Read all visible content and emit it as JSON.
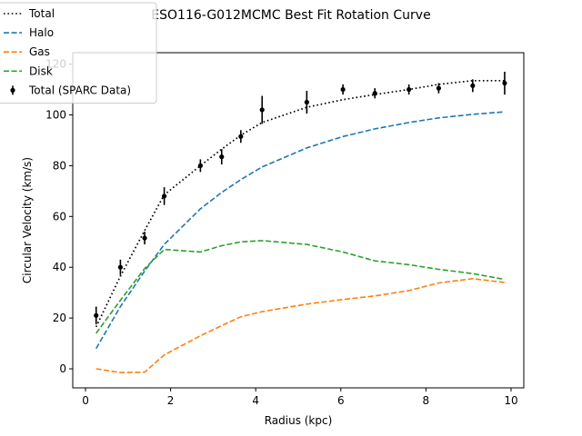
{
  "chart_data": {
    "type": "line",
    "title": "ESO116-G012MCMC Best Fit Rotation Curve",
    "xlabel": "Radius (kpc)",
    "ylabel": "Circular Velocity (km/s)",
    "xlim": [
      -0.3,
      10.3
    ],
    "ylim": [
      -7.5,
      124.5
    ],
    "xticks": [
      0,
      2,
      4,
      6,
      8,
      10
    ],
    "yticks": [
      0,
      20,
      40,
      60,
      80,
      100,
      120
    ],
    "grid": false,
    "legend_position": "top-left",
    "series": [
      {
        "name": "Total",
        "style": "dotted",
        "color": "#000000",
        "x": [
          0.25,
          0.82,
          1.39,
          1.85,
          2.7,
          3.2,
          3.65,
          4.15,
          5.2,
          6.05,
          6.8,
          7.6,
          8.3,
          9.1,
          9.85
        ],
        "y": [
          16.5,
          36.5,
          54.5,
          68.5,
          80,
          86.5,
          92,
          97,
          103,
          106,
          108,
          110,
          112,
          113.5,
          113.5
        ]
      },
      {
        "name": "Halo",
        "style": "dashed",
        "color": "#1f77b4",
        "x": [
          0.25,
          0.82,
          1.39,
          1.85,
          2.7,
          3.2,
          3.65,
          4.15,
          5.2,
          6.05,
          6.8,
          7.6,
          8.3,
          9.1,
          9.85
        ],
        "y": [
          8,
          24.5,
          38.5,
          49,
          63,
          69.5,
          74.5,
          79.5,
          87,
          91.5,
          94.5,
          97,
          98.8,
          100.2,
          101.2
        ]
      },
      {
        "name": "Gas",
        "style": "dashed",
        "color": "#ff7f0e",
        "x": [
          0.25,
          0.82,
          1.39,
          1.85,
          2.7,
          3.2,
          3.65,
          4.15,
          5.2,
          6.05,
          6.8,
          7.6,
          8.3,
          9.1,
          9.85
        ],
        "y": [
          0,
          -1.5,
          -1.3,
          5.5,
          13,
          17,
          20.5,
          22.5,
          25.5,
          27.3,
          28.7,
          30.8,
          33.8,
          35.5,
          34
        ]
      },
      {
        "name": "Disk",
        "style": "dashed",
        "color": "#2ca02c",
        "x": [
          0.25,
          0.82,
          1.39,
          1.85,
          2.7,
          3.2,
          3.65,
          4.15,
          5.2,
          6.05,
          6.8,
          7.6,
          8.3,
          9.1,
          9.85
        ],
        "y": [
          14,
          27,
          39.5,
          47,
          46,
          48.5,
          50,
          50.5,
          49,
          46,
          42.5,
          41,
          39.2,
          37.5,
          35.2
        ]
      },
      {
        "name": "Total (SPARC Data)",
        "style": "errorbar",
        "color": "#000000",
        "x": [
          0.25,
          0.82,
          1.39,
          1.85,
          2.7,
          3.2,
          3.65,
          4.15,
          5.2,
          6.05,
          6.8,
          7.6,
          8.3,
          9.1,
          9.85
        ],
        "y": [
          21,
          40,
          51.5,
          68,
          80,
          83.5,
          91.5,
          102,
          105,
          110,
          108.5,
          110,
          110.5,
          111.5,
          112.5
        ],
        "err": [
          3.5,
          3,
          2.5,
          3.5,
          2.5,
          3,
          2.5,
          5.5,
          4.5,
          2,
          2,
          2,
          2,
          2.5,
          4.5
        ]
      }
    ]
  }
}
